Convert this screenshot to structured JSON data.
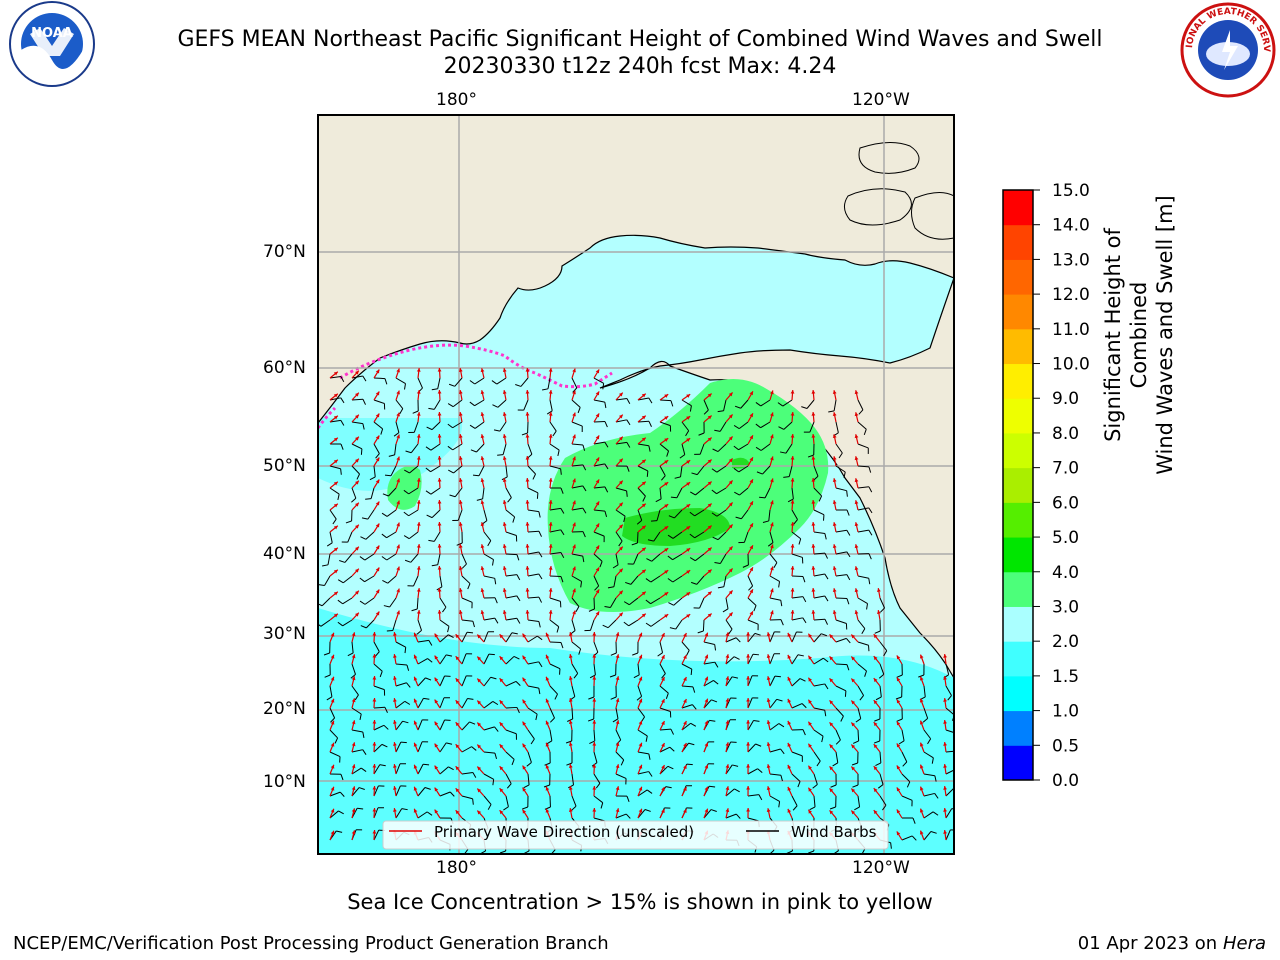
{
  "header": {
    "title_line1": "GEFS MEAN Northeast Pacific Significant Height of Combined Wind Waves and Swell",
    "title_line2": "20230330 t12z 240h fcst   Max: 4.24"
  },
  "logos": {
    "left_icon": "noaa-logo",
    "left_text": "NOAA",
    "right_icon": "nws-logo",
    "right_text": "NATIONAL WEATHER SERVICE"
  },
  "map": {
    "top_lon_labels": [
      "180°",
      "120°W"
    ],
    "bottom_lon_labels": [
      "180°",
      "120°W"
    ],
    "lat_labels": [
      "70°N",
      "60°N",
      "50°N",
      "40°N",
      "30°N",
      "20°N",
      "10°N"
    ],
    "ocean_color": "#b3ffff",
    "land_color": "#efebdb",
    "legend": {
      "wave_direction_label": "Primary Wave Direction (unscaled)",
      "wind_barbs_label": "Wind Barbs",
      "wave_direction_color": "#e00000",
      "wind_barbs_color": "#000000"
    }
  },
  "colorbar": {
    "title_line1": "Significant Height of Combined",
    "title_line2": "Wind Waves and Swell [m]",
    "levels": [
      "0.0",
      "0.5",
      "1.0",
      "1.5",
      "2.0",
      "3.0",
      "4.0",
      "5.0",
      "6.0",
      "7.0",
      "8.0",
      "9.0",
      "10.0",
      "11.0",
      "12.0",
      "13.0",
      "14.0",
      "15.0"
    ],
    "colors": [
      "#0000ff",
      "#0080ff",
      "#00ffff",
      "#40ffff",
      "#aaffff",
      "#4cff7a",
      "#00e600",
      "#55ee00",
      "#aaee00",
      "#ccff00",
      "#eeff00",
      "#ffee00",
      "#ffbb00",
      "#ff8800",
      "#ff6600",
      "#ff4400",
      "#ff0000"
    ]
  },
  "footer": {
    "note": "Sea Ice Concentration > 15% is shown in pink to yellow",
    "credit_left": "NCEP/EMC/Verification Post Processing Product Generation Branch",
    "credit_date": "01 Apr 2023 on",
    "credit_host": "Hera"
  }
}
